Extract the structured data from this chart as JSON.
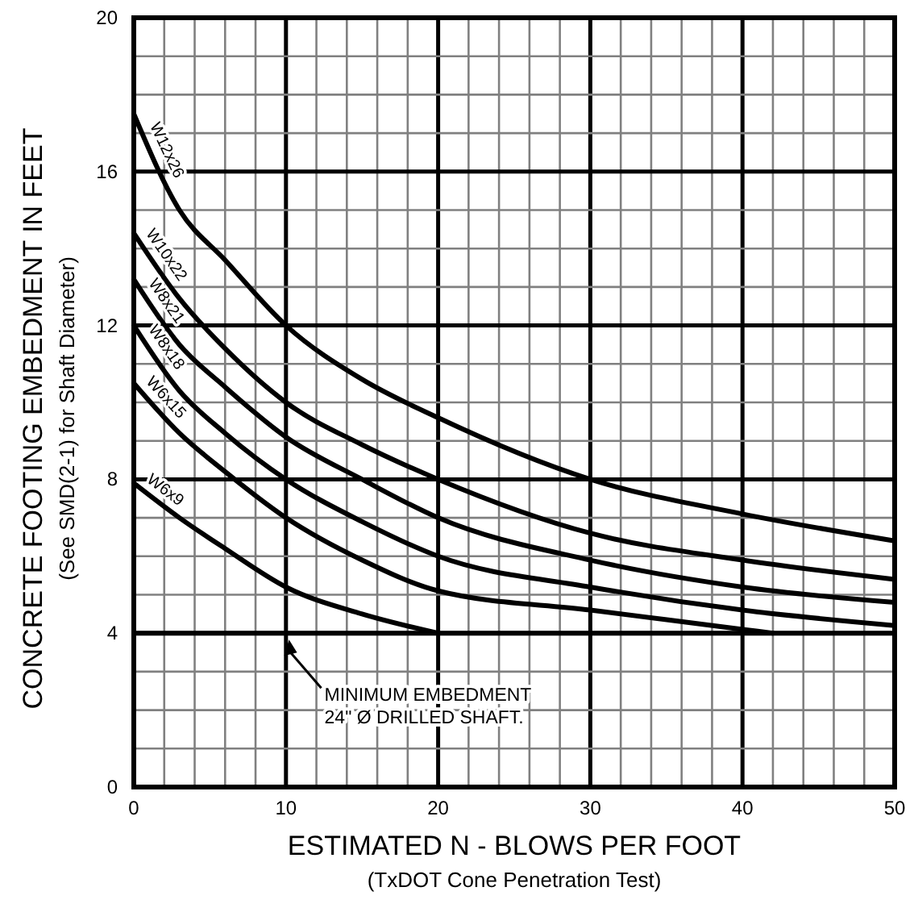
{
  "chart_data": {
    "type": "line",
    "xlabel": "ESTIMATED N - BLOWS PER FOOT\n(TxDOT Cone Penetration Test)",
    "ylabel": "CONCRETE FOOTING EMBEDMENT IN FEET\n(See SMD(2-1) for Shaft Diameter)",
    "xlim": [
      0,
      50
    ],
    "ylim": [
      0,
      20
    ],
    "xticks": [
      0,
      {
        "value": 2,
        "label": null
      },
      {
        "value": 4,
        "label": null
      },
      {
        "value": 6,
        "label": null
      },
      {
        "value": 8,
        "label": null
      },
      10,
      {
        "value": 12,
        "label": null
      },
      {
        "value": 14,
        "label": null
      },
      {
        "value": 16,
        "label": null
      },
      {
        "value": 18,
        "label": null
      },
      20,
      {
        "value": 22,
        "label": null
      },
      {
        "value": 24,
        "label": null
      },
      {
        "value": 26,
        "label": null
      },
      {
        "value": 28,
        "label": null
      },
      30,
      {
        "value": 32,
        "label": null
      },
      {
        "value": 34,
        "label": null
      },
      {
        "value": 36,
        "label": null
      },
      {
        "value": 38,
        "label": null
      },
      40,
      {
        "value": 42,
        "label": null
      },
      {
        "value": 44,
        "label": null
      },
      {
        "value": 46,
        "label": null
      },
      {
        "value": 48,
        "label": null
      },
      50
    ],
    "yticks": [
      0,
      {
        "value": 1,
        "label": null
      },
      {
        "value": 2,
        "label": null
      },
      {
        "value": 3,
        "label": null
      },
      4,
      {
        "value": 5,
        "label": null
      },
      {
        "value": 6,
        "label": null
      },
      {
        "value": 7,
        "label": null
      },
      8,
      {
        "value": 9,
        "label": null
      },
      {
        "value": 10,
        "label": null
      },
      {
        "value": 11,
        "label": null
      },
      12,
      {
        "value": 13,
        "label": null
      },
      {
        "value": 14,
        "label": null
      },
      {
        "value": 15,
        "label": null
      },
      16,
      {
        "value": 17,
        "label": null
      },
      {
        "value": 18,
        "label": null
      },
      {
        "value": 19,
        "label": null
      },
      20
    ],
    "grid": true,
    "legend": false,
    "marker": "none",
    "line_style": "solid",
    "series": [
      {
        "name": "W12x26",
        "color": "#000000",
        "x": [
          0,
          3,
          6,
          10,
          15,
          20,
          30,
          40,
          50
        ],
        "values": [
          17.5,
          15.0,
          13.7,
          12.0,
          10.6,
          9.6,
          8.0,
          7.1,
          6.4
        ]
      },
      {
        "name": "W10x22",
        "color": "#000000",
        "x": [
          0,
          3,
          6,
          10,
          15,
          20,
          30,
          40,
          50
        ],
        "values": [
          14.4,
          12.7,
          11.4,
          10.0,
          8.9,
          8.0,
          6.6,
          5.9,
          5.4
        ]
      },
      {
        "name": "W8x21",
        "color": "#000000",
        "x": [
          0,
          3,
          6,
          10,
          15,
          20,
          30,
          40,
          50
        ],
        "values": [
          13.2,
          11.5,
          10.4,
          9.1,
          8.0,
          7.0,
          5.9,
          5.2,
          4.8
        ]
      },
      {
        "name": "W8x18",
        "color": "#000000",
        "x": [
          0,
          3,
          6,
          10,
          15,
          20,
          30,
          40,
          50
        ],
        "values": [
          12.0,
          10.3,
          9.2,
          8.0,
          6.9,
          6.0,
          5.2,
          4.6,
          4.2
        ]
      },
      {
        "name": "W6x15",
        "color": "#000000",
        "x": [
          0,
          3,
          6,
          10,
          15,
          20,
          30,
          40,
          42
        ],
        "values": [
          10.5,
          9.2,
          8.2,
          7.0,
          5.9,
          5.1,
          4.6,
          4.1,
          4.0
        ]
      },
      {
        "name": "W6x9",
        "color": "#000000",
        "x": [
          0,
          3,
          6,
          10,
          15,
          20
        ],
        "values": [
          7.9,
          7.0,
          6.2,
          5.2,
          4.5,
          4.0
        ]
      }
    ],
    "ref_lines": [
      {
        "axis": "y",
        "value": 4,
        "color": "#000000"
      }
    ],
    "annotations": [
      "MINIMUM EMBEDMENT\n24\" Ø DRILLED SHAFT."
    ]
  }
}
